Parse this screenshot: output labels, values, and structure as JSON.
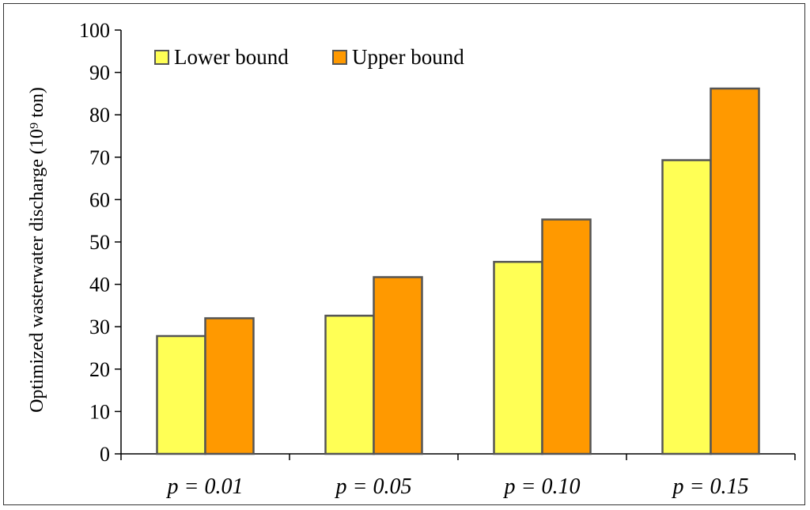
{
  "chart_data": {
    "type": "bar",
    "categories": [
      "p = 0.01",
      "p = 0.05",
      "p = 0.10",
      "p = 0.15"
    ],
    "series": [
      {
        "name": "Lower bound",
        "values": [
          27.8,
          32.6,
          45.3,
          69.3
        ],
        "color": "#FFFF55"
      },
      {
        "name": "Upper bound",
        "values": [
          32.0,
          41.7,
          55.3,
          86.2
        ],
        "color": "#FF9900"
      }
    ],
    "title": "",
    "xlabel": "",
    "ylabel": "Optimized  wasterwater discharge (10⁹ ton)",
    "ylim": [
      0,
      100
    ],
    "yticks": [
      0,
      10,
      20,
      30,
      40,
      50,
      60,
      70,
      80,
      90,
      100
    ],
    "grid": false,
    "legend": "top-left"
  }
}
